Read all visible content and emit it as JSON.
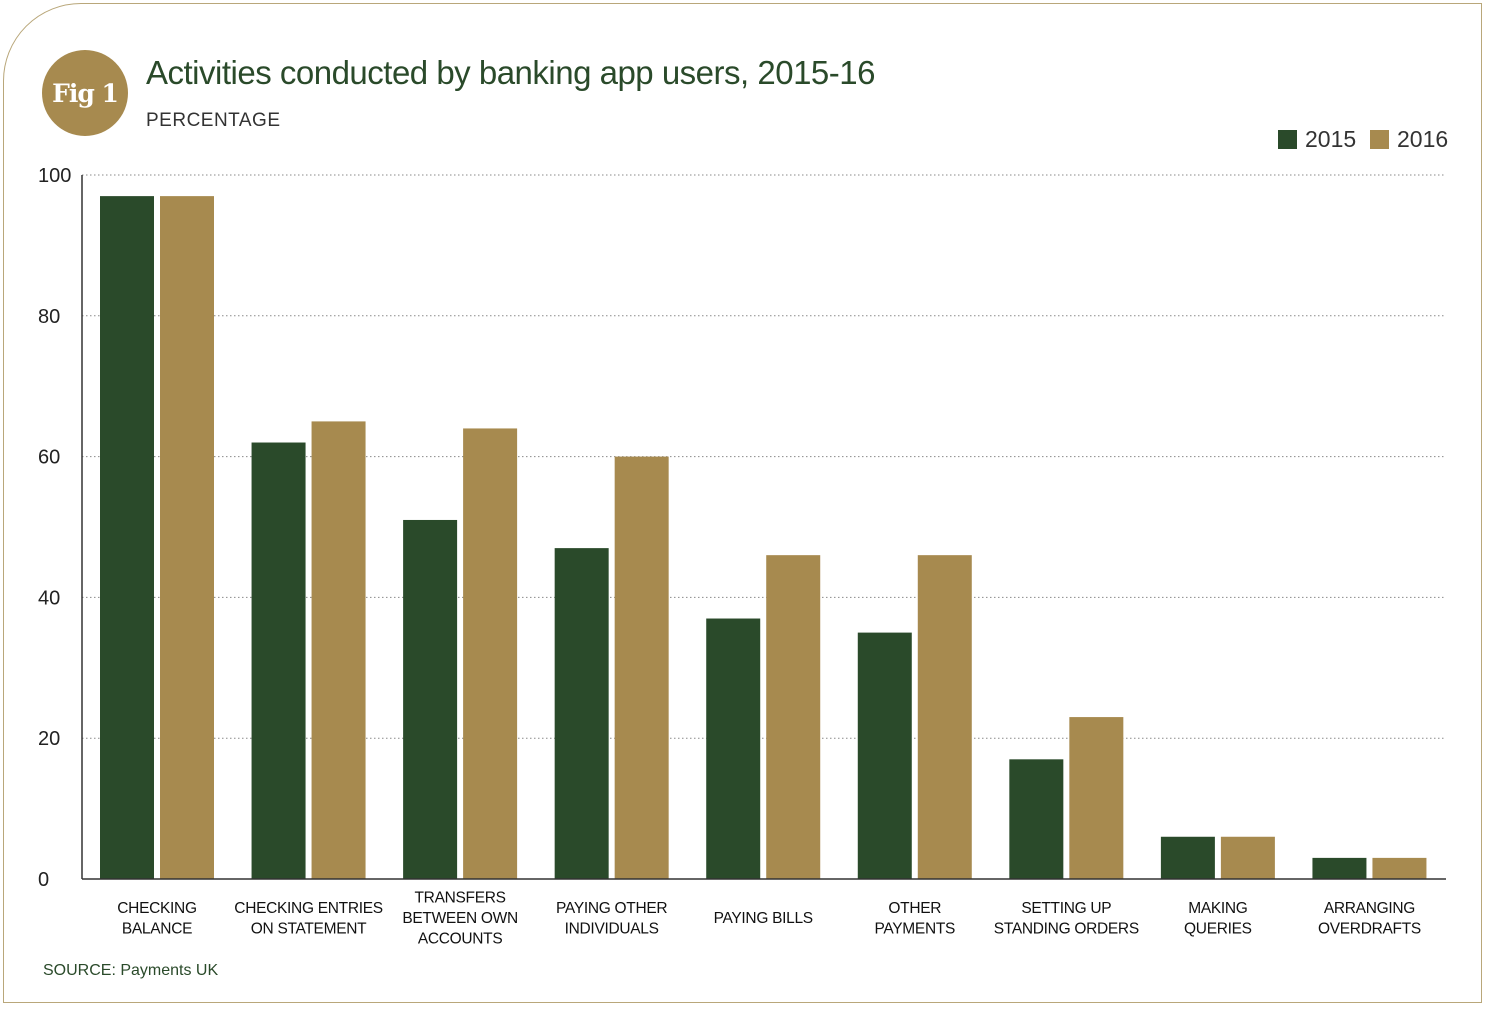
{
  "badge": "Fig 1",
  "source": "SOURCE: Payments UK",
  "colors": {
    "series_2015": "#2a4a2a",
    "series_2016": "#a78a4f",
    "accent": "#a78a4f",
    "title": "#2a4a2a"
  },
  "chart_data": {
    "type": "bar",
    "title": "Activities conducted by banking app users, 2015-16",
    "subtitle": "PERCENTAGE",
    "xlabel": "",
    "ylabel": "",
    "ylim": [
      0,
      100
    ],
    "yticks": [
      "0",
      "20",
      "40",
      "60",
      "80",
      "100"
    ],
    "grid": true,
    "legend_position": "top-right",
    "categories": [
      [
        "CHECKING",
        "BALANCE"
      ],
      [
        "CHECKING ENTRIES",
        "ON STATEMENT"
      ],
      [
        "TRANSFERS",
        "BETWEEN OWN",
        "ACCOUNTS"
      ],
      [
        "PAYING OTHER",
        "INDIVIDUALS"
      ],
      [
        "PAYING BILLS"
      ],
      [
        "OTHER",
        "PAYMENTS"
      ],
      [
        "SETTING UP",
        "STANDING ORDERS"
      ],
      [
        "MAKING",
        "QUERIES"
      ],
      [
        "ARRANGING",
        "OVERDRAFTS"
      ]
    ],
    "series": [
      {
        "name": "2015",
        "values": [
          97,
          62,
          51,
          47,
          37,
          35,
          17,
          6,
          3
        ]
      },
      {
        "name": "2016",
        "values": [
          97,
          65,
          64,
          60,
          46,
          46,
          23,
          6,
          3
        ]
      }
    ]
  }
}
